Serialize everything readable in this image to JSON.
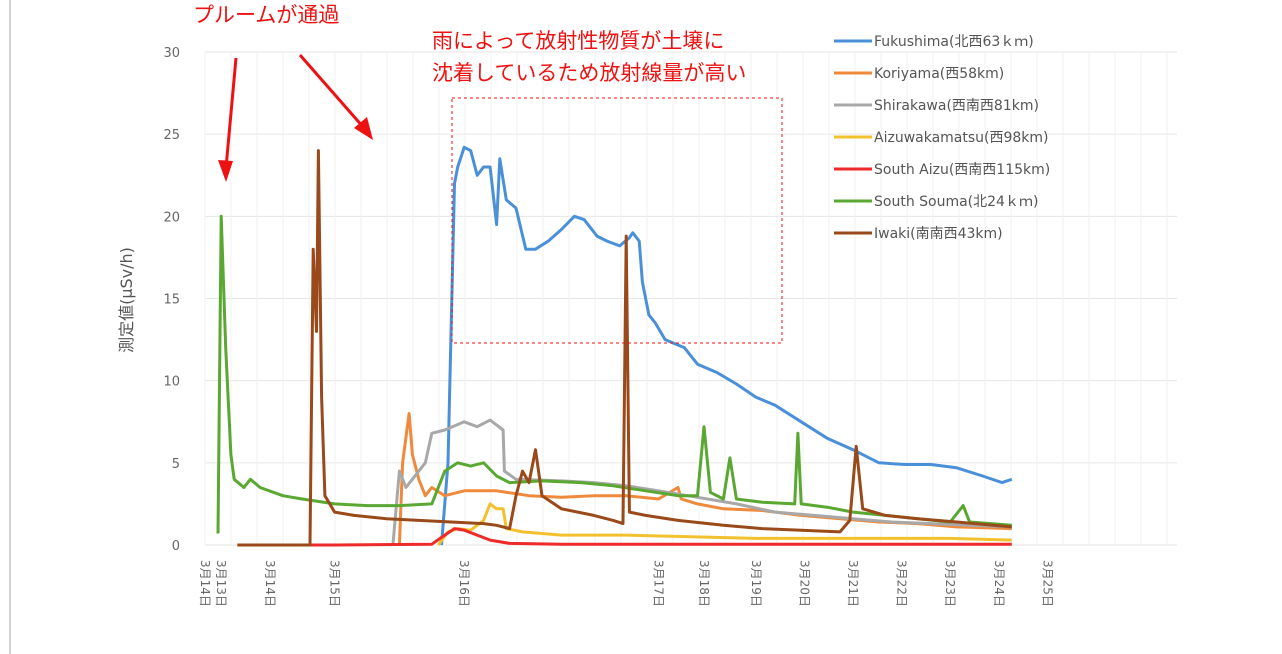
{
  "chart_data": {
    "type": "line",
    "ylabel": "測定値(μSv/h)",
    "ylim": [
      0,
      30
    ],
    "yticks": [
      0,
      5,
      10,
      15,
      20,
      25,
      30
    ],
    "xlim": [
      0,
      15
    ],
    "grid": true,
    "legend_position": "top-right",
    "x_tick_labels": [
      {
        "x": 0.0,
        "label": "3月14日"
      },
      {
        "x": 0.25,
        "label": "3月13日"
      },
      {
        "x": 1.0,
        "label": "3月14日"
      },
      {
        "x": 2.0,
        "label": "3月15日"
      },
      {
        "x": 4.0,
        "label": "3月16日"
      },
      {
        "x": 7.0,
        "label": "3月17日"
      },
      {
        "x": 7.7,
        "label": "3月18日"
      },
      {
        "x": 8.5,
        "label": "3月19日"
      },
      {
        "x": 9.25,
        "label": "3月20日"
      },
      {
        "x": 10.0,
        "label": "3月21日"
      },
      {
        "x": 10.75,
        "label": "3月22日"
      },
      {
        "x": 11.5,
        "label": "3月23日"
      },
      {
        "x": 12.25,
        "label": "3月24日"
      },
      {
        "x": 13.0,
        "label": "3月25日"
      }
    ],
    "series": [
      {
        "name": "Fukushima(北西63ｋｍ)",
        "color": "#4a90d9",
        "points": [
          [
            3.65,
            0
          ],
          [
            3.75,
            5
          ],
          [
            3.85,
            22
          ],
          [
            3.9,
            23
          ],
          [
            4.0,
            24.2
          ],
          [
            4.1,
            24
          ],
          [
            4.2,
            22.5
          ],
          [
            4.3,
            23
          ],
          [
            4.4,
            23
          ],
          [
            4.5,
            19.5
          ],
          [
            4.55,
            23.5
          ],
          [
            4.65,
            21
          ],
          [
            4.8,
            20.5
          ],
          [
            4.95,
            18
          ],
          [
            5.1,
            18
          ],
          [
            5.3,
            18.5
          ],
          [
            5.5,
            19.2
          ],
          [
            5.7,
            20
          ],
          [
            5.85,
            19.8
          ],
          [
            6.05,
            18.8
          ],
          [
            6.2,
            18.5
          ],
          [
            6.4,
            18.2
          ],
          [
            6.55,
            18.7
          ],
          [
            6.6,
            19
          ],
          [
            6.7,
            18.5
          ],
          [
            6.75,
            16
          ],
          [
            6.85,
            14
          ],
          [
            6.95,
            13.5
          ],
          [
            7.1,
            12.5
          ],
          [
            7.4,
            12
          ],
          [
            7.6,
            11
          ],
          [
            7.9,
            10.5
          ],
          [
            8.2,
            9.8
          ],
          [
            8.5,
            9
          ],
          [
            8.8,
            8.5
          ],
          [
            9.2,
            7.5
          ],
          [
            9.6,
            6.5
          ],
          [
            10.0,
            5.8
          ],
          [
            10.4,
            5
          ],
          [
            10.8,
            4.9
          ],
          [
            11.2,
            4.9
          ],
          [
            11.6,
            4.7
          ],
          [
            12.0,
            4.2
          ],
          [
            12.3,
            3.8
          ],
          [
            12.45,
            4
          ]
        ]
      },
      {
        "name": "Koriyama(西58km)",
        "color": "#ef8a3d",
        "points": [
          [
            3.0,
            0
          ],
          [
            3.05,
            5
          ],
          [
            3.15,
            8
          ],
          [
            3.2,
            5.5
          ],
          [
            3.3,
            4
          ],
          [
            3.4,
            3
          ],
          [
            3.5,
            3.5
          ],
          [
            3.7,
            3
          ],
          [
            4.0,
            3.3
          ],
          [
            4.5,
            3.3
          ],
          [
            5.0,
            3
          ],
          [
            5.5,
            2.9
          ],
          [
            6.0,
            3
          ],
          [
            6.5,
            3
          ],
          [
            7.0,
            2.8
          ],
          [
            7.3,
            3.5
          ],
          [
            7.35,
            2.8
          ],
          [
            7.6,
            2.5
          ],
          [
            8.0,
            2.2
          ],
          [
            8.6,
            2.1
          ],
          [
            9.2,
            1.8
          ],
          [
            9.8,
            1.6
          ],
          [
            10.4,
            1.4
          ],
          [
            11.0,
            1.3
          ],
          [
            11.6,
            1.1
          ],
          [
            12.45,
            1
          ]
        ]
      },
      {
        "name": "Shirakawa(西南西81km)",
        "color": "#a8a8a8",
        "points": [
          [
            2.9,
            0
          ],
          [
            3.0,
            4.5
          ],
          [
            3.1,
            3.5
          ],
          [
            3.4,
            5
          ],
          [
            3.5,
            6.8
          ],
          [
            3.7,
            7
          ],
          [
            4.0,
            7.5
          ],
          [
            4.2,
            7.2
          ],
          [
            4.4,
            7.6
          ],
          [
            4.6,
            7
          ],
          [
            4.62,
            4.5
          ],
          [
            4.8,
            4
          ],
          [
            5.5,
            3.9
          ],
          [
            6.0,
            3.8
          ],
          [
            6.5,
            3.6
          ],
          [
            7.0,
            3.3
          ],
          [
            7.6,
            2.9
          ],
          [
            8.2,
            2.5
          ],
          [
            8.8,
            2
          ],
          [
            9.4,
            1.8
          ],
          [
            10.0,
            1.6
          ],
          [
            10.6,
            1.4
          ],
          [
            11.2,
            1.3
          ],
          [
            11.8,
            1.2
          ],
          [
            12.45,
            1.1
          ]
        ]
      },
      {
        "name": "Aizuwakamatsu(西98km)",
        "color": "#f2c12e",
        "points": [
          [
            3.6,
            0
          ],
          [
            3.75,
            0.8
          ],
          [
            3.9,
            1
          ],
          [
            4.1,
            0.9
          ],
          [
            4.3,
            1.5
          ],
          [
            4.4,
            2.5
          ],
          [
            4.5,
            2.2
          ],
          [
            4.6,
            2.2
          ],
          [
            4.65,
            1
          ],
          [
            4.9,
            0.8
          ],
          [
            5.5,
            0.6
          ],
          [
            6.5,
            0.6
          ],
          [
            7.5,
            0.5
          ],
          [
            8.5,
            0.4
          ],
          [
            9.5,
            0.4
          ],
          [
            10.5,
            0.4
          ],
          [
            11.5,
            0.4
          ],
          [
            12.45,
            0.3
          ]
        ]
      },
      {
        "name": "South Aizu(西南西115km)",
        "color": "#ee2a2a",
        "points": [
          [
            0.5,
            0
          ],
          [
            2.0,
            0
          ],
          [
            3.5,
            0.05
          ],
          [
            3.7,
            0.6
          ],
          [
            3.85,
            1
          ],
          [
            4.0,
            0.9
          ],
          [
            4.2,
            0.6
          ],
          [
            4.4,
            0.3
          ],
          [
            4.7,
            0.1
          ],
          [
            5.5,
            0.05
          ],
          [
            12.45,
            0.05
          ]
        ]
      },
      {
        "name": "South Souma(北24ｋｍ)",
        "color": "#5aa832",
        "points": [
          [
            0.2,
            0.7
          ],
          [
            0.25,
            20
          ],
          [
            0.32,
            12
          ],
          [
            0.4,
            5.5
          ],
          [
            0.45,
            4
          ],
          [
            0.6,
            3.5
          ],
          [
            0.7,
            4
          ],
          [
            0.85,
            3.5
          ],
          [
            1.2,
            3
          ],
          [
            1.5,
            2.8
          ],
          [
            2.0,
            2.5
          ],
          [
            2.5,
            2.4
          ],
          [
            3.0,
            2.4
          ],
          [
            3.5,
            2.5
          ],
          [
            3.7,
            4.5
          ],
          [
            3.9,
            5
          ],
          [
            4.1,
            4.8
          ],
          [
            4.3,
            5
          ],
          [
            4.5,
            4.2
          ],
          [
            4.7,
            3.8
          ],
          [
            5.2,
            3.9
          ],
          [
            5.8,
            3.8
          ],
          [
            6.3,
            3.6
          ],
          [
            6.8,
            3.3
          ],
          [
            7.3,
            3
          ],
          [
            7.6,
            3
          ],
          [
            7.7,
            7.2
          ],
          [
            7.8,
            3.2
          ],
          [
            8.0,
            2.8
          ],
          [
            8.1,
            5.3
          ],
          [
            8.2,
            2.8
          ],
          [
            8.6,
            2.6
          ],
          [
            9.1,
            2.5
          ],
          [
            9.15,
            6.8
          ],
          [
            9.2,
            2.5
          ],
          [
            9.6,
            2.3
          ],
          [
            10.0,
            2
          ],
          [
            10.5,
            1.8
          ],
          [
            11.0,
            1.6
          ],
          [
            11.5,
            1.4
          ],
          [
            11.7,
            2.4
          ],
          [
            11.8,
            1.4
          ],
          [
            12.45,
            1.2
          ]
        ]
      },
      {
        "name": "Iwaki(南南西43km)",
        "color": "#9a4a1a",
        "points": [
          [
            0.5,
            0
          ],
          [
            1.5,
            0
          ],
          [
            1.62,
            0
          ],
          [
            1.67,
            18
          ],
          [
            1.72,
            13
          ],
          [
            1.75,
            24
          ],
          [
            1.8,
            9
          ],
          [
            1.85,
            3
          ],
          [
            2.0,
            2
          ],
          [
            2.3,
            1.8
          ],
          [
            2.8,
            1.6
          ],
          [
            3.3,
            1.5
          ],
          [
            3.8,
            1.4
          ],
          [
            4.3,
            1.3
          ],
          [
            4.5,
            1.2
          ],
          [
            4.7,
            1
          ],
          [
            4.8,
            3
          ],
          [
            4.9,
            4.5
          ],
          [
            5.0,
            3.8
          ],
          [
            5.1,
            5.8
          ],
          [
            5.2,
            3
          ],
          [
            5.5,
            2.2
          ],
          [
            6.0,
            1.8
          ],
          [
            6.3,
            1.5
          ],
          [
            6.45,
            1.3
          ],
          [
            6.5,
            18.8
          ],
          [
            6.55,
            2
          ],
          [
            6.8,
            1.8
          ],
          [
            7.3,
            1.5
          ],
          [
            8.0,
            1.2
          ],
          [
            8.6,
            1
          ],
          [
            9.2,
            0.9
          ],
          [
            9.8,
            0.8
          ],
          [
            9.95,
            1.5
          ],
          [
            10.05,
            6
          ],
          [
            10.15,
            2.2
          ],
          [
            10.5,
            1.8
          ],
          [
            11.0,
            1.6
          ],
          [
            11.6,
            1.4
          ],
          [
            12.45,
            1.1
          ]
        ]
      }
    ]
  },
  "annotations": {
    "plume_text": "プルームが通過",
    "rain_text_line1": "雨によって放射性物質が土壌に",
    "rain_text_line2": "沈着しているため放射線量が高い"
  },
  "colors": {
    "annotation": "#ee1111",
    "grid": "#e6e6e6"
  }
}
